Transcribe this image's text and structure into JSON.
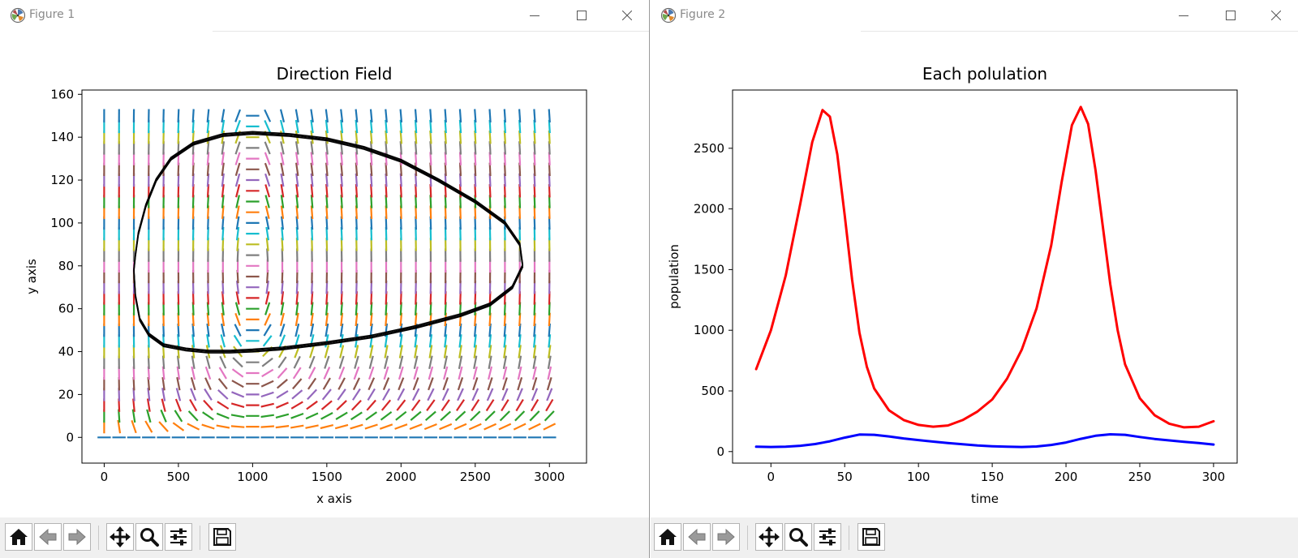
{
  "windows": [
    {
      "title": "Figure 1",
      "toolbar": [
        "home-icon",
        "back-icon",
        "forward-icon",
        "pan-icon",
        "zoom-icon",
        "configure-subplots-icon",
        "save-icon"
      ]
    },
    {
      "title": "Figure 2",
      "toolbar": [
        "home-icon",
        "back-icon",
        "forward-icon",
        "pan-icon",
        "zoom-icon",
        "configure-subplots-icon",
        "save-icon"
      ]
    }
  ],
  "chart_data": [
    {
      "type": "line",
      "title": "Direction Field",
      "xlabel": "x axis",
      "ylabel": "y axis",
      "xlim": [
        -150,
        3250
      ],
      "ylim": [
        -12,
        162
      ],
      "xticks": [
        0,
        500,
        1000,
        1500,
        2000,
        2500,
        3000
      ],
      "yticks": [
        0,
        20,
        40,
        60,
        80,
        100,
        120,
        140,
        160
      ],
      "grid": false,
      "legend": "none",
      "direction_field": {
        "x_range": [
          0,
          3000
        ],
        "x_count": 31,
        "y_range": [
          0,
          150
        ],
        "y_count": 31,
        "equilibrium": [
          1000,
          80
        ],
        "colors": [
          "#1f77b4",
          "#ff7f0e",
          "#2ca02c",
          "#d62728",
          "#9467bd",
          "#8c564b",
          "#e377c2",
          "#7f7f7f",
          "#bcbd22",
          "#17becf"
        ]
      },
      "series": [
        {
          "color": "#000000",
          "x": [
            2820,
            2800,
            2700,
            2500,
            2250,
            2000,
            1750,
            1500,
            1250,
            1000,
            800,
            600,
            450,
            350,
            280,
            230,
            210,
            200,
            210,
            240,
            300,
            400,
            550,
            700,
            850,
            1000,
            1200,
            1500,
            1800,
            2100,
            2400,
            2600,
            2750,
            2820
          ],
          "y": [
            80,
            90,
            100,
            110,
            120,
            129,
            135,
            139,
            141,
            142,
            141,
            137,
            130,
            120,
            108,
            95,
            85,
            78,
            66,
            55,
            48,
            43,
            41,
            40,
            40,
            40.5,
            41.5,
            44,
            47,
            51.5,
            57,
            62,
            70,
            80
          ]
        }
      ]
    },
    {
      "type": "line",
      "title": "Each polulation",
      "xlabel": "time",
      "ylabel": "population",
      "xlim": [
        -26,
        316
      ],
      "ylim": [
        -95,
        2980
      ],
      "xticks": [
        0,
        50,
        100,
        150,
        200,
        250,
        300
      ],
      "yticks": [
        0,
        500,
        1000,
        1500,
        2000,
        2500
      ],
      "grid": false,
      "legend": "none",
      "series": [
        {
          "color": "#ff0000",
          "x": [
            -10,
            0,
            10,
            20,
            28,
            35,
            40,
            45,
            50,
            55,
            60,
            65,
            70,
            80,
            90,
            100,
            110,
            120,
            130,
            140,
            150,
            160,
            170,
            180,
            190,
            197,
            204,
            210,
            215,
            220,
            225,
            230,
            235,
            240,
            250,
            260,
            270,
            280,
            290,
            300
          ],
          "y": [
            680,
            1000,
            1450,
            2050,
            2550,
            2815,
            2760,
            2450,
            1950,
            1420,
            980,
            700,
            520,
            340,
            260,
            220,
            205,
            215,
            260,
            330,
            430,
            600,
            840,
            1180,
            1700,
            2220,
            2690,
            2840,
            2700,
            2320,
            1850,
            1380,
            1000,
            720,
            440,
            300,
            230,
            200,
            205,
            250
          ]
        },
        {
          "color": "#0000ff",
          "x": [
            -10,
            0,
            10,
            20,
            30,
            40,
            50,
            60,
            70,
            80,
            90,
            100,
            110,
            120,
            130,
            140,
            150,
            160,
            170,
            180,
            190,
            200,
            210,
            220,
            230,
            240,
            250,
            260,
            270,
            280,
            290,
            300
          ],
          "y": [
            40,
            38,
            40,
            48,
            62,
            85,
            115,
            140,
            138,
            125,
            108,
            95,
            82,
            70,
            60,
            50,
            44,
            40,
            38,
            42,
            55,
            75,
            105,
            130,
            142,
            138,
            120,
            104,
            92,
            80,
            70,
            58
          ]
        }
      ]
    }
  ]
}
